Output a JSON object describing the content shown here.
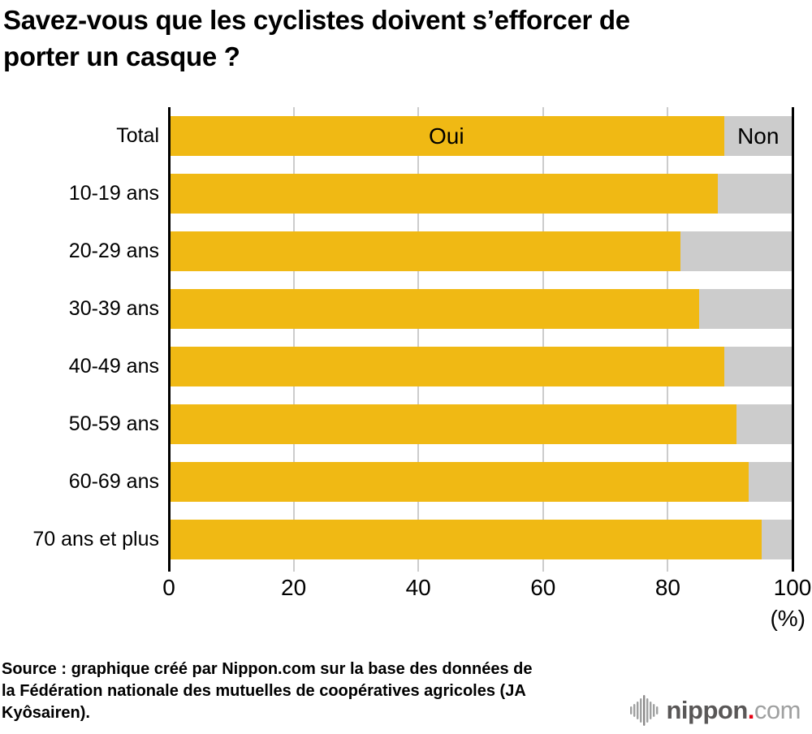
{
  "title": {
    "line1": "Savez-vous que les cyclistes doivent s’efforcer de",
    "line2": "porter un casque ?"
  },
  "chart_data": {
    "type": "bar",
    "orientation": "horizontal",
    "stacked": true,
    "title": "Savez-vous que les cyclistes doivent s’efforcer de porter un casque ?",
    "categories": [
      "Total",
      "10-19 ans",
      "20-29 ans",
      "30-39 ans",
      "40-49 ans",
      "50-59 ans",
      "60-69 ans",
      "70 ans et plus"
    ],
    "series": [
      {
        "name": "Oui",
        "color": "#f0b914",
        "values": [
          89,
          88,
          82,
          85,
          89,
          91,
          93,
          95
        ]
      },
      {
        "name": "Non",
        "color": "#cccccc",
        "values": [
          11,
          12,
          18,
          15,
          11,
          9,
          7,
          5
        ]
      }
    ],
    "x_ticks": [
      0,
      20,
      40,
      60,
      80,
      100
    ],
    "xlim": [
      0,
      100
    ],
    "x_unit_label": "(%)",
    "grid": true,
    "gridline_color": "#cccccc",
    "axis_color": "#000000",
    "legend": "labels inside first bar (Oui on yellow segment, Non on grey segment)"
  },
  "source": {
    "line1": "Source : graphique créé par Nippon.com sur la base des données de",
    "line2": "la Fédération nationale des mutuelles de coopératives agricoles (JA",
    "line3": "Kyôsairen)."
  },
  "logo": {
    "name": "nippon",
    "dot": ".",
    "domain": "com",
    "name_color": "#595757",
    "dot_color": "#e60012",
    "domain_color": "#9fa0a0"
  }
}
